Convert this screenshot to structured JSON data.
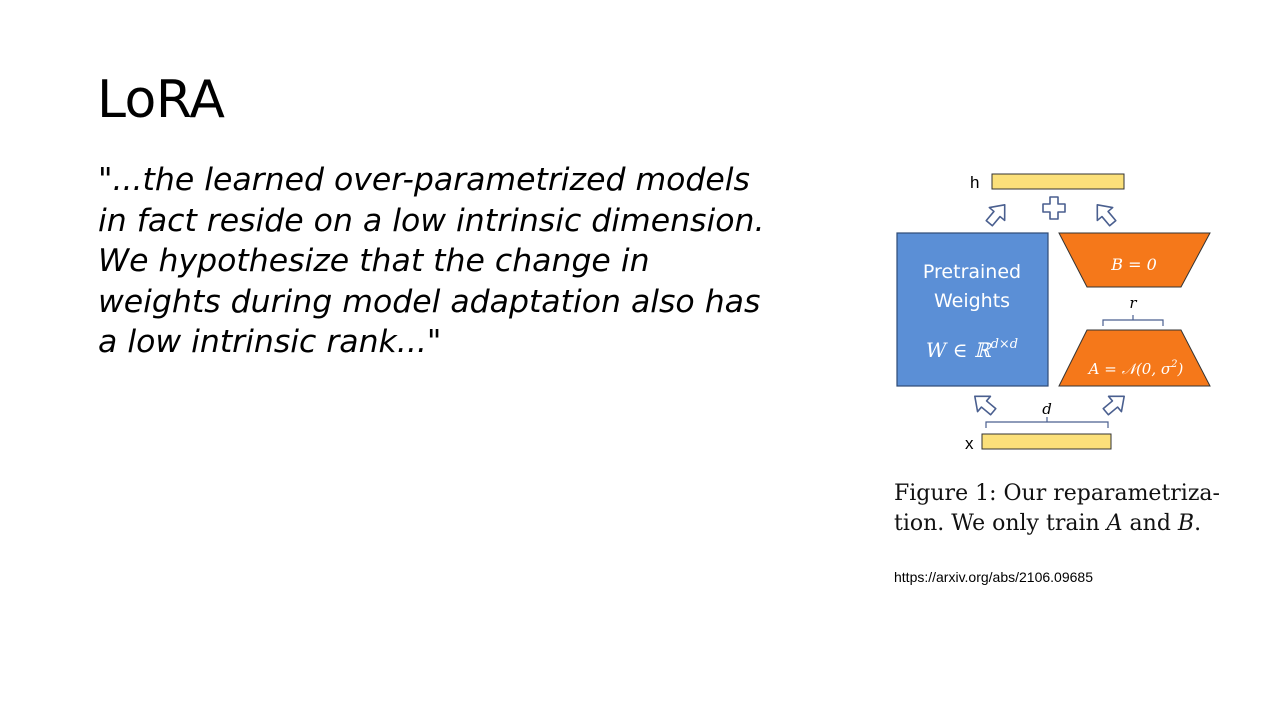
{
  "slide": {
    "title": "LoRA",
    "quote": "\"...the learned over-parametrized models in fact reside on a low intrinsic dimension. We hypothesize that the change in weights during model adaptation also has a low intrinsic rank...\""
  },
  "figure": {
    "output_label": "h",
    "input_label": "x",
    "pretrained_label_line1": "Pretrained",
    "pretrained_label_line2": "Weights",
    "pretrained_formula": "W ∈ ℝ",
    "pretrained_formula_sup": "d×d",
    "b_label": "B = 0",
    "a_label": "A = 𝒩(0, σ",
    "a_label_sup": "2",
    "a_label_end": ")",
    "r_label": "r",
    "d_label": "d",
    "colors": {
      "pretrained_fill": "#5b8fd6",
      "trapezoid_fill": "#f5781a",
      "bar_fill": "#fbe07a",
      "arrow_stroke": "#4a5f8f"
    },
    "caption_line1": "Figure 1: Our reparametriza-",
    "caption_line2_pre": "tion. We only train ",
    "caption_a": "A",
    "caption_and": " and ",
    "caption_b": "B",
    "caption_end": "."
  },
  "source": {
    "url": "https://arxiv.org/abs/2106.09685"
  }
}
